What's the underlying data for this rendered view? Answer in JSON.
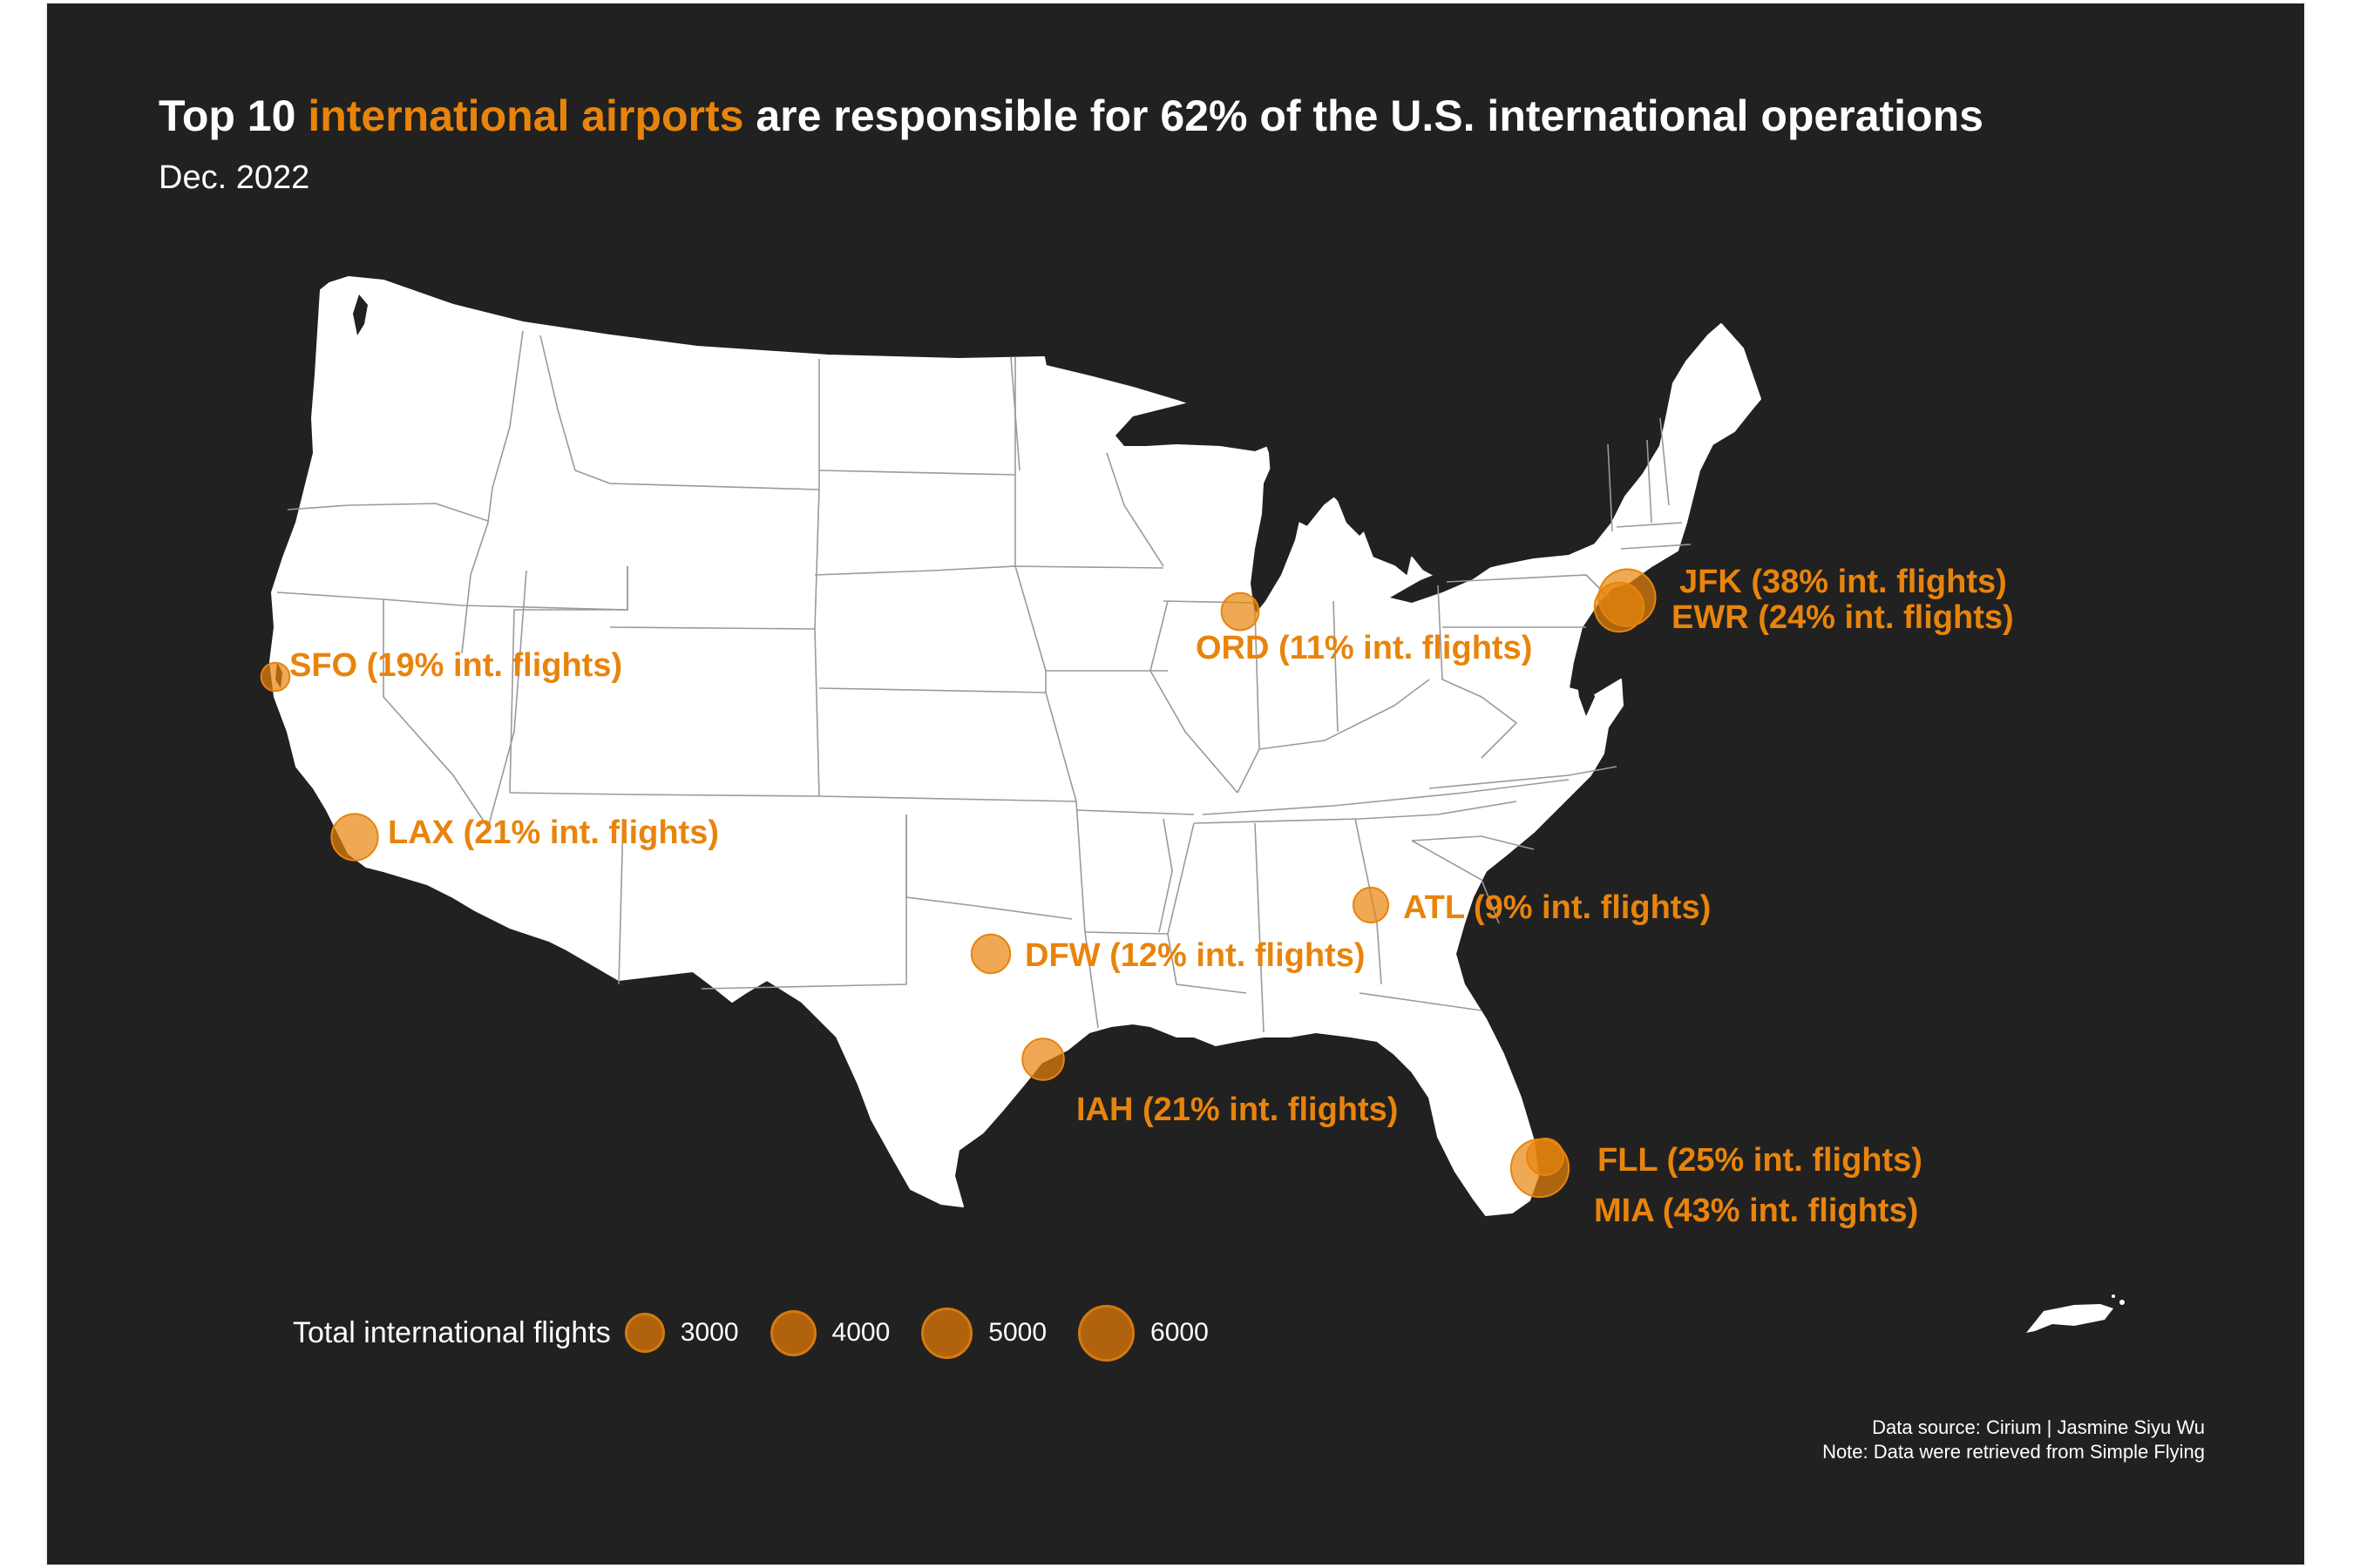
{
  "title": {
    "part1": "Top 10",
    "highlight": "international airports",
    "part2": "are responsible for 62% of the U.S. international operations"
  },
  "subtitle": "Dec. 2022",
  "colors": {
    "background": "#212121",
    "accent": "#e8840c",
    "land": "#ffffff",
    "state_border": "#9a9a9a"
  },
  "airports": [
    {
      "code": "JFK",
      "label": "JFK (38% int. flights)",
      "international_flights": 6000
    },
    {
      "code": "EWR",
      "label": "EWR (24% int. flights)",
      "international_flights": 4500
    },
    {
      "code": "ORD",
      "label": "ORD (11% int. flights)",
      "international_flights": 2600
    },
    {
      "code": "SFO",
      "label": "SFO (19% int. flights)",
      "international_flights": 1500
    },
    {
      "code": "LAX",
      "label": "LAX (21% int. flights)",
      "international_flights": 4000
    },
    {
      "code": "ATL",
      "label": "ATL (9% int. flights)",
      "international_flights": 2300
    },
    {
      "code": "DFW",
      "label": "DFW (12% int. flights)",
      "international_flights": 2800
    },
    {
      "code": "IAH",
      "label": "IAH (21% int. flights)",
      "international_flights": 3200
    },
    {
      "code": "FLL",
      "label": "FLL (25% int. flights)",
      "international_flights": 2500
    },
    {
      "code": "MIA",
      "label": "MIA (43% int. flights)",
      "international_flights": 6200
    }
  ],
  "legend": {
    "title": "Total international flights",
    "items": [
      {
        "label": "3000",
        "value": 3000
      },
      {
        "label": "4000",
        "value": 4000
      },
      {
        "label": "5000",
        "value": 5000
      },
      {
        "label": "6000",
        "value": 6000
      }
    ]
  },
  "caption": {
    "line1": "Data source: Cirium | Jasmine Siyu Wu",
    "line2": "Note: Data were retrieved from Simple Flying"
  }
}
